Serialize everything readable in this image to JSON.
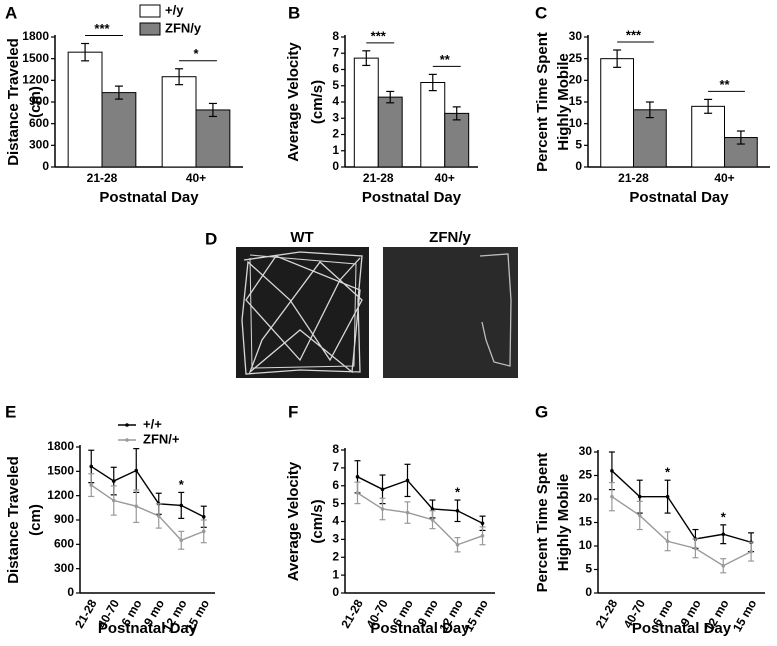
{
  "chart_data": [
    {
      "type": "bar",
      "panel": "A",
      "ylabel": [
        "Distance Traveled",
        "(cm)"
      ],
      "xlabel": "Postnatal Day",
      "categories": [
        "21-28",
        "40+"
      ],
      "series": [
        {
          "name": "+/y",
          "color": "#ffffff",
          "values": [
            1590,
            1250
          ],
          "errors": [
            120,
            110
          ]
        },
        {
          "name": "ZFN/y",
          "color": "#808080",
          "values": [
            1030,
            790
          ],
          "errors": [
            90,
            90
          ]
        }
      ],
      "annotations": [
        "***",
        "*"
      ],
      "ylim": [
        0,
        1800
      ],
      "yticks": [
        0,
        300,
        600,
        900,
        1200,
        1500,
        1800
      ]
    },
    {
      "type": "bar",
      "panel": "B",
      "ylabel": [
        "Average Velocity",
        "(cm/s)"
      ],
      "xlabel": "Postnatal Day",
      "categories": [
        "21-28",
        "40+"
      ],
      "series": [
        {
          "color": "#ffffff",
          "values": [
            6.7,
            5.2
          ],
          "errors": [
            0.45,
            0.5
          ]
        },
        {
          "color": "#808080",
          "values": [
            4.3,
            3.3
          ],
          "errors": [
            0.35,
            0.4
          ]
        }
      ],
      "annotations": [
        "***",
        "**"
      ],
      "ylim": [
        0,
        8
      ],
      "yticks": [
        0,
        1,
        2,
        3,
        4,
        5,
        6,
        7,
        8
      ]
    },
    {
      "type": "bar",
      "panel": "C",
      "ylabel": [
        "Percent Time Spent",
        "Highly Mobile"
      ],
      "xlabel": "Postnatal Day",
      "categories": [
        "21-28",
        "40+"
      ],
      "series": [
        {
          "color": "#ffffff",
          "values": [
            25,
            14
          ],
          "errors": [
            2,
            1.6
          ]
        },
        {
          "color": "#808080",
          "values": [
            13.2,
            6.8
          ],
          "errors": [
            1.8,
            1.5
          ]
        }
      ],
      "annotations": [
        "***",
        "**"
      ],
      "ylim": [
        0,
        30
      ],
      "yticks": [
        0,
        5,
        10,
        15,
        20,
        25,
        30
      ]
    },
    {
      "type": "line",
      "panel": "E",
      "ylabel": [
        "Distance Traveled",
        "(cm)"
      ],
      "xlabel": "Postnatal Day",
      "categories": [
        "21-28",
        "40-70",
        "6 mo",
        "9 mo",
        "12 mo",
        "15 mo"
      ],
      "series": [
        {
          "name": "+/+",
          "color": "#000000",
          "values": [
            1560,
            1380,
            1510,
            1100,
            1080,
            940
          ],
          "errors": [
            200,
            170,
            270,
            130,
            160,
            130
          ]
        },
        {
          "name": "ZFN/+",
          "color": "#999999",
          "values": [
            1330,
            1140,
            1070,
            950,
            650,
            760
          ],
          "errors": [
            140,
            180,
            200,
            150,
            110,
            140
          ]
        }
      ],
      "annotations": [
        null,
        null,
        null,
        null,
        "*",
        null
      ],
      "ylim": [
        0,
        1800
      ],
      "yticks": [
        0,
        300,
        600,
        900,
        1200,
        1500,
        1800
      ]
    },
    {
      "type": "line",
      "panel": "F",
      "ylabel": [
        "Average Velocity",
        "(cm/s)"
      ],
      "xlabel": "Postnatal Day",
      "categories": [
        "21-28",
        "40-70",
        "6 mo",
        "9 mo",
        "12 mo",
        "15 mo"
      ],
      "series": [
        {
          "color": "#000000",
          "values": [
            6.5,
            5.8,
            6.3,
            4.7,
            4.6,
            3.9
          ],
          "errors": [
            0.9,
            0.8,
            0.9,
            0.5,
            0.6,
            0.4
          ]
        },
        {
          "color": "#999999",
          "values": [
            5.6,
            4.7,
            4.5,
            4.1,
            2.7,
            3.2
          ],
          "errors": [
            0.6,
            0.6,
            0.6,
            0.5,
            0.4,
            0.5
          ]
        }
      ],
      "annotations": [
        null,
        null,
        null,
        null,
        "*",
        null
      ],
      "ylim": [
        0,
        8
      ],
      "yticks": [
        0,
        1,
        2,
        3,
        4,
        5,
        6,
        7,
        8
      ]
    },
    {
      "type": "line",
      "panel": "G",
      "ylabel": [
        "Percent Time Spent",
        "Highly Mobile"
      ],
      "xlabel": "Postnatal Day",
      "categories": [
        "21-28",
        "40-70",
        "6 mo",
        "9 mo",
        "12 mo",
        "15 mo"
      ],
      "series": [
        {
          "color": "#000000",
          "values": [
            26,
            20.5,
            20.5,
            11.5,
            12.5,
            10.8
          ],
          "errors": [
            4,
            3.5,
            3.5,
            2,
            2,
            2
          ]
        },
        {
          "color": "#999999",
          "values": [
            20.5,
            16.5,
            11,
            9.5,
            5.8,
            8.8
          ],
          "errors": [
            3,
            3,
            2,
            2,
            1.5,
            2
          ]
        }
      ],
      "annotations": [
        null,
        null,
        "*",
        null,
        "*",
        null
      ],
      "ylim": [
        0,
        30
      ],
      "yticks": [
        0,
        5,
        10,
        15,
        20,
        25,
        30
      ]
    }
  ],
  "image_panel": {
    "panel": "D",
    "labels": [
      "WT",
      "ZFN/y"
    ]
  }
}
